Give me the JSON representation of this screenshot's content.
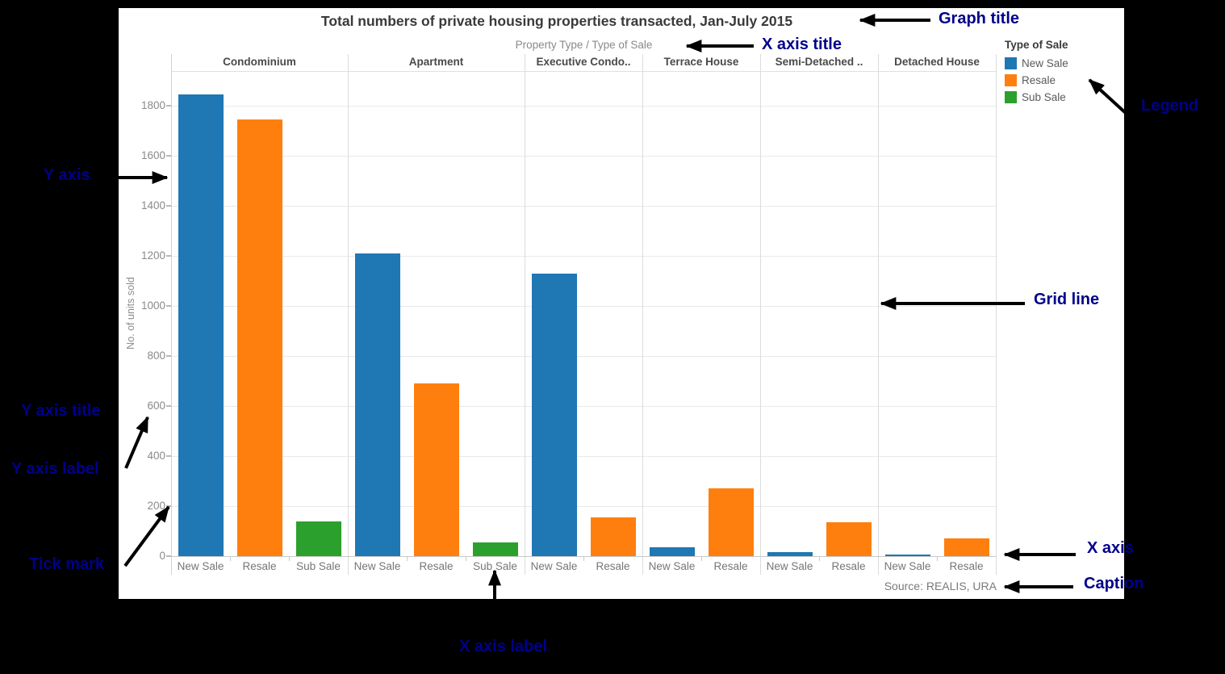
{
  "chart": {
    "title": "Total numbers of private housing properties transacted, Jan-July 2015",
    "x_axis_title": "Property Type  /  Type of Sale",
    "y_axis_title": "No. of units sold",
    "caption": "Source: REALIS, URA",
    "legend": {
      "title": "Type of Sale",
      "items": [
        {
          "label": "New Sale",
          "color": "#1f77b4"
        },
        {
          "label": "Resale",
          "color": "#ff7f0e"
        },
        {
          "label": "Sub Sale",
          "color": "#2ca02c"
        }
      ]
    }
  },
  "chart_data": {
    "type": "bar",
    "title": "Total numbers of private housing properties transacted, Jan-July 2015",
    "xlabel": "Property Type / Type of Sale",
    "ylabel": "No. of units sold",
    "ylim": [
      0,
      1940
    ],
    "yticks": [
      0,
      200,
      400,
      600,
      800,
      1000,
      1200,
      1400,
      1600,
      1800
    ],
    "grid": true,
    "legend_position": "top-right",
    "caption": "Source: REALIS, URA",
    "series_colors": {
      "New Sale": "#1f77b4",
      "Resale": "#ff7f0e",
      "Sub Sale": "#2ca02c"
    },
    "groups": [
      {
        "category": "Condominium",
        "bars": [
          {
            "type": "New Sale",
            "value": 1845
          },
          {
            "type": "Resale",
            "value": 1745
          },
          {
            "type": "Sub Sale",
            "value": 140
          }
        ]
      },
      {
        "category": "Apartment",
        "bars": [
          {
            "type": "New Sale",
            "value": 1210
          },
          {
            "type": "Resale",
            "value": 690
          },
          {
            "type": "Sub Sale",
            "value": 55
          }
        ]
      },
      {
        "category": "Executive Condo..",
        "bars": [
          {
            "type": "New Sale",
            "value": 1130
          },
          {
            "type": "Resale",
            "value": 155
          }
        ]
      },
      {
        "category": "Terrace House",
        "bars": [
          {
            "type": "New Sale",
            "value": 35
          },
          {
            "type": "Resale",
            "value": 270
          }
        ]
      },
      {
        "category": "Semi-Detached ..",
        "bars": [
          {
            "type": "New Sale",
            "value": 15
          },
          {
            "type": "Resale",
            "value": 135
          }
        ]
      },
      {
        "category": "Detached House",
        "bars": [
          {
            "type": "New Sale",
            "value": 5
          },
          {
            "type": "Resale",
            "value": 70
          }
        ]
      }
    ]
  },
  "annotations": {
    "color": "#00008b",
    "graph_title": "Graph title",
    "x_axis_title": "X axis title",
    "legend": "Legend",
    "y_axis": "Y axis",
    "grid_line": "Grid line",
    "y_axis_title": "Y axis title",
    "y_axis_label": "Y axis label",
    "tick_mark": "Tick mark",
    "x_axis_label": "X axis label",
    "x_axis": "X axis",
    "caption": "Caption"
  }
}
